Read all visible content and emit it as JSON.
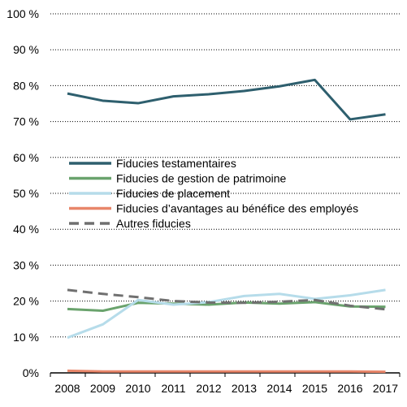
{
  "chart_data": {
    "type": "line",
    "x": [
      "2008",
      "2009",
      "2010",
      "2011",
      "2012",
      "2013",
      "2014",
      "2015",
      "2016",
      "2017"
    ],
    "y_ticks": [
      "0%",
      "10 %",
      "20 %",
      "30 %",
      "40 %",
      "50 %",
      "60 %",
      "70 %",
      "80 %",
      "90 %",
      "100 %"
    ],
    "ylim": [
      0,
      100
    ],
    "grid": "horizontal",
    "legend_position": "center-left",
    "series": [
      {
        "name": "Fiducies testamentaires",
        "color": "#2e5f6e",
        "dash": false,
        "values": [
          77.8,
          75.8,
          75.1,
          77.0,
          77.6,
          78.5,
          79.8,
          81.6,
          70.6,
          72.0
        ]
      },
      {
        "name": "Fiducies de gestion de patrimoine",
        "color": "#6aa36d",
        "dash": false,
        "values": [
          17.8,
          17.3,
          19.5,
          19.3,
          19.0,
          19.6,
          19.3,
          19.7,
          18.5,
          18.4
        ]
      },
      {
        "name": "Fiducies de placement",
        "color": "#b6dcea",
        "dash": false,
        "values": [
          9.8,
          13.5,
          20.3,
          19.0,
          19.7,
          21.4,
          22.0,
          20.6,
          21.6,
          23.1
        ]
      },
      {
        "name": "Fiducies d’avantages au bénéfice des employés",
        "color": "#e8866a",
        "dash": false,
        "values": [
          0.6,
          0.4,
          0.4,
          0.4,
          0.4,
          0.4,
          0.4,
          0.4,
          0.4,
          0.3
        ]
      },
      {
        "name": "Autres fiducies",
        "color": "#707070",
        "dash": true,
        "values": [
          23.1,
          22.0,
          21.1,
          20.0,
          19.6,
          19.5,
          19.8,
          20.3,
          18.7,
          17.7
        ]
      }
    ]
  }
}
